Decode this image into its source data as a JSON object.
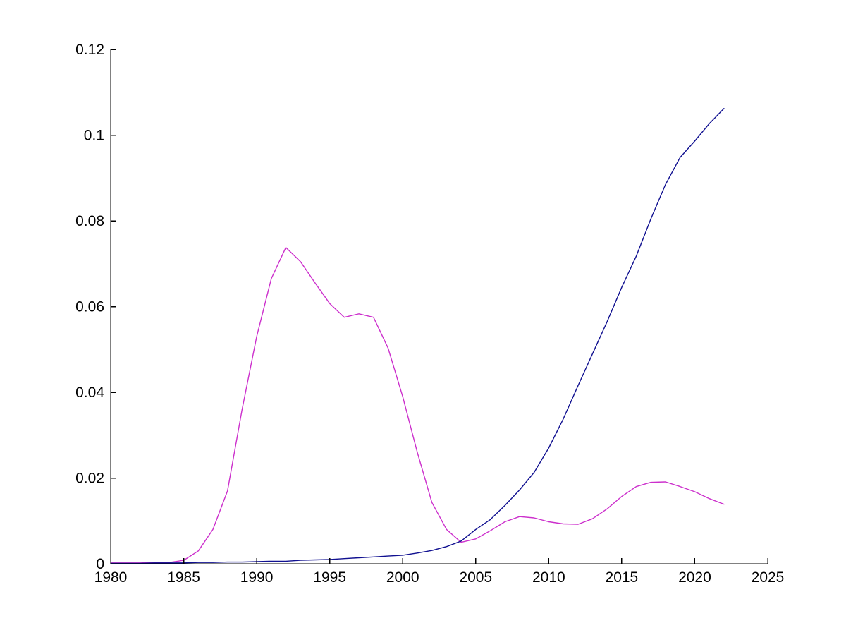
{
  "figure": {
    "background": "#ffffff",
    "title": ""
  },
  "chart_data": {
    "type": "line",
    "title": "",
    "subtitle": "",
    "xlabel": "",
    "ylabel": "",
    "grid": false,
    "legend": null,
    "box": false,
    "axis_color": "#000000",
    "tick_direction": "in",
    "xlim": [
      1980,
      2025
    ],
    "ylim": [
      0,
      0.12
    ],
    "x_ticks": [
      1980,
      1985,
      1990,
      1995,
      2000,
      2005,
      2010,
      2015,
      2020,
      2025
    ],
    "x_tick_labels": [
      "1980",
      "1985",
      "1990",
      "1995",
      "2000",
      "2005",
      "2010",
      "2015",
      "2020",
      "2025"
    ],
    "y_ticks": [
      0,
      0.02,
      0.04,
      0.06,
      0.08,
      0.1,
      0.12
    ],
    "y_tick_labels": [
      "0",
      "0.02",
      "0.04",
      "0.06",
      "0.08",
      "0.1",
      "0.12"
    ],
    "x": [
      1980,
      1981,
      1982,
      1983,
      1984,
      1985,
      1986,
      1987,
      1988,
      1989,
      1990,
      1991,
      1992,
      1993,
      1994,
      1995,
      1996,
      1997,
      1998,
      1999,
      2000,
      2001,
      2002,
      2003,
      2004,
      2005,
      2006,
      2007,
      2008,
      2009,
      2010,
      2011,
      2012,
      2013,
      2014,
      2015,
      2016,
      2017,
      2018,
      2019,
      2020,
      2021,
      2022
    ],
    "series": [
      {
        "name": "magenta-line",
        "color": "#cc2fcc",
        "values": [
          0.0002,
          0.0002,
          0.0002,
          0.0003,
          0.0003,
          0.0008,
          0.003,
          0.008,
          0.017,
          0.036,
          0.053,
          0.0665,
          0.0738,
          0.0705,
          0.0655,
          0.0607,
          0.0575,
          0.0583,
          0.0575,
          0.0503,
          0.039,
          0.026,
          0.0143,
          0.008,
          0.005,
          0.0058,
          0.0077,
          0.0098,
          0.011,
          0.0107,
          0.0098,
          0.0093,
          0.0092,
          0.0105,
          0.0128,
          0.0157,
          0.018,
          0.019,
          0.0191,
          0.018,
          0.0168,
          0.0152,
          0.0139
        ]
      },
      {
        "name": "blue-line",
        "color": "#101090",
        "values": [
          0.0001,
          0.0001,
          0.0001,
          0.0002,
          0.0002,
          0.0002,
          0.0003,
          0.0003,
          0.0004,
          0.0004,
          0.0005,
          0.0006,
          0.0006,
          0.0008,
          0.0009,
          0.001,
          0.0012,
          0.0014,
          0.0016,
          0.0018,
          0.002,
          0.0025,
          0.0031,
          0.004,
          0.0053,
          0.008,
          0.0103,
          0.0136,
          0.0172,
          0.0213,
          0.027,
          0.0338,
          0.0415,
          0.049,
          0.0565,
          0.0645,
          0.0718,
          0.0805,
          0.0885,
          0.0948,
          0.0986,
          0.1027,
          0.1062
        ]
      }
    ]
  }
}
